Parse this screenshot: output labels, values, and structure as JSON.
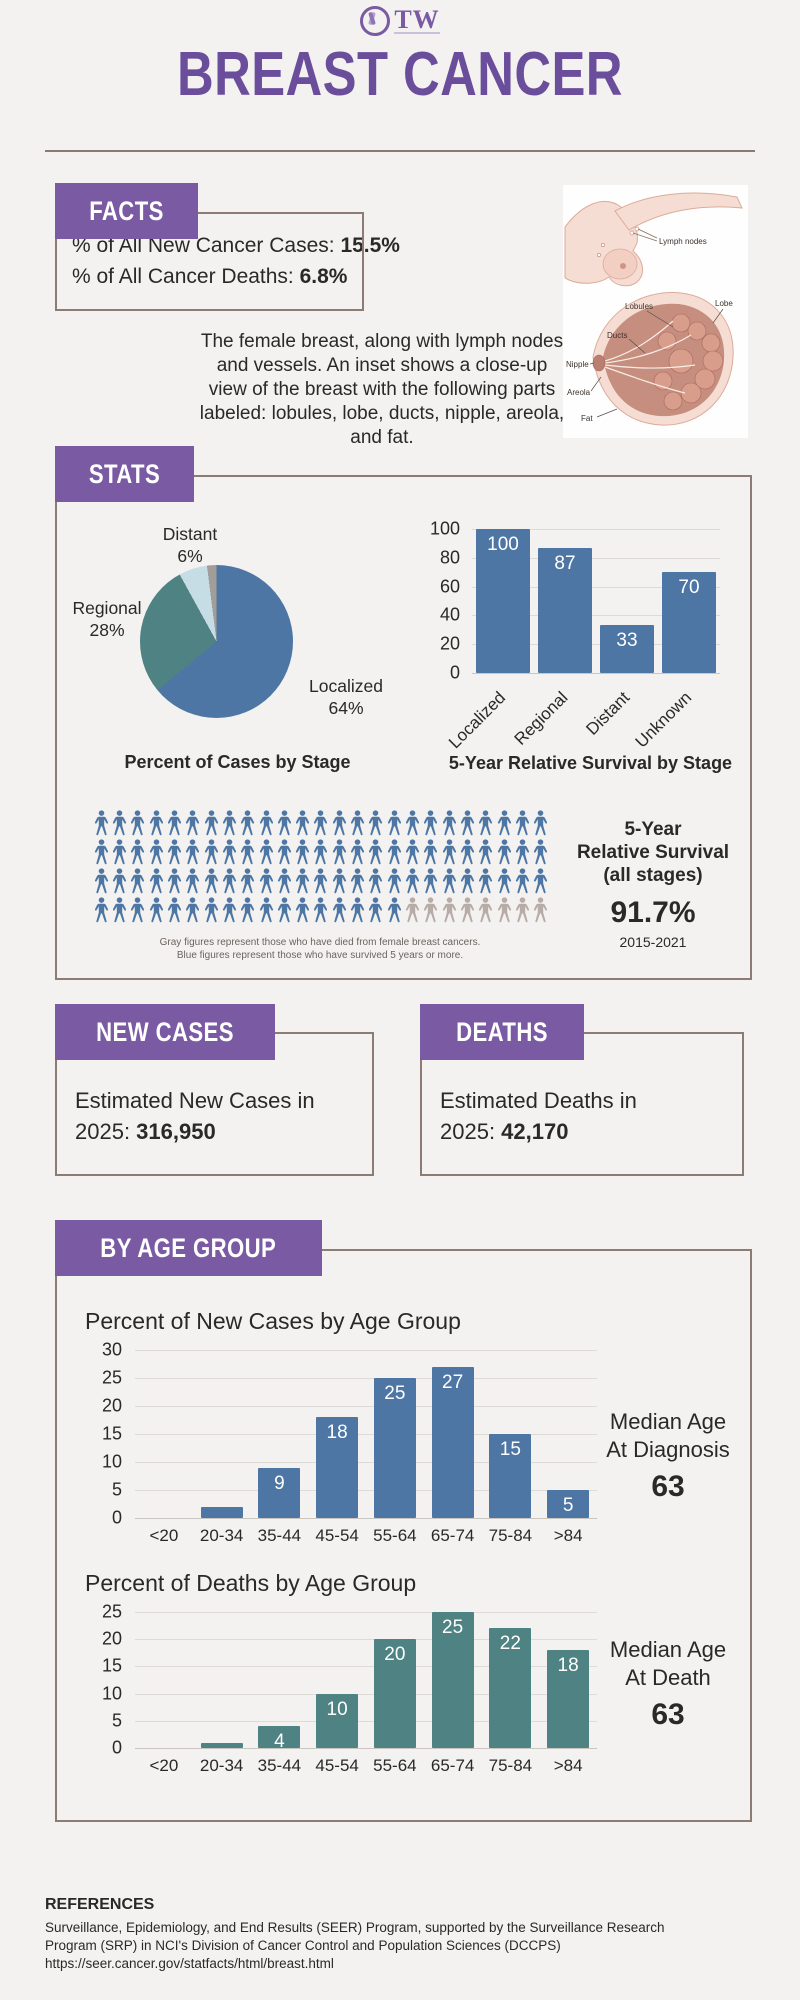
{
  "logo": {
    "text": "TW"
  },
  "title": "BREAST CANCER",
  "colors": {
    "accent_purple": "#7a5ba3",
    "title_purple": "#6b4e9b",
    "steel_blue": "#4d76a4",
    "teal": "#4e8283",
    "pale_blue": "#c6dde6",
    "figure_gray": "#b7aca7",
    "border_brown": "#8c7c74",
    "background": "#f3f2f0"
  },
  "facts": {
    "heading": "FACTS",
    "line1_label": "% of All New Cancer Cases: ",
    "line1_value": "15.5%",
    "line2_label": "% of All Cancer Deaths: ",
    "line2_value": "6.8%",
    "description": "The female breast, along with lymph nodes and vessels. An inset shows a close-up view of the breast with the following parts labeled: lobules, lobe, ducts, nipple, areola, and fat.",
    "anatomy_labels": {
      "lymph": "Lymph nodes",
      "lobules": "Lobules",
      "lobe": "Lobe",
      "ducts": "Ducts",
      "nipple": "Nipple",
      "areola": "Areola",
      "fat": "Fat"
    }
  },
  "stats": {
    "heading": "STATS",
    "pictograph_note_line1": "Gray figures represent those who have died from female breast cancers.",
    "pictograph_note_line2": "Blue figures represent those who have survived 5 years or more.",
    "survival_block": {
      "line1": "5-Year",
      "line2": "Relative Survival",
      "line3": "(all stages)",
      "value": "91.7%",
      "period": "2015-2021"
    }
  },
  "new_cases": {
    "heading": "NEW CASES",
    "line1": "Estimated New Cases in",
    "line2_label": "2025: ",
    "line2_value": "316,950"
  },
  "deaths": {
    "heading": "DEATHS",
    "line1": "Estimated Deaths in",
    "line2_label": "2025: ",
    "line2_value": "42,170"
  },
  "by_age": {
    "heading": "BY AGE GROUP",
    "diagnosis_median": {
      "line1": "Median Age",
      "line2": "At Diagnosis",
      "value": "63"
    },
    "death_median": {
      "line1": "Median Age",
      "line2": "At Death",
      "value": "63"
    }
  },
  "references": {
    "heading": "REFERENCES",
    "line1": "Surveillance, Epidemiology, and End Results (SEER) Program, supported by the Surveillance Research",
    "line2": "Program (SRP) in NCI's Division of Cancer Control and Population Sciences (DCCPS)",
    "url": "https://seer.cancer.gov/statfacts/html/breast.html"
  },
  "chart_data": [
    {
      "type": "pie",
      "title": "Percent of Cases by Stage",
      "slices": [
        {
          "label": "Localized",
          "value": 64,
          "pct": "64%"
        },
        {
          "label": "Regional",
          "value": 28,
          "pct": "28%"
        },
        {
          "label": "Distant",
          "value": 6,
          "pct": "6%"
        },
        {
          "label": "Unknown",
          "value": 2,
          "pct": "2%"
        }
      ],
      "colors": [
        "#4d76a4",
        "#4e8283",
        "#c6dde6",
        "#a39d99"
      ],
      "start": "top",
      "direction": "clockwise",
      "legend": "none"
    },
    {
      "type": "bar",
      "title": "5-Year Relative Survival by Stage",
      "categories": [
        "Localized",
        "Regional",
        "Distant",
        "Unknown"
      ],
      "values": [
        100,
        87,
        33,
        70
      ],
      "value_labels": [
        "100",
        "87",
        "33",
        "70"
      ],
      "ylim": [
        0,
        100
      ],
      "yticks": [
        0,
        20,
        40,
        60,
        80,
        100
      ],
      "bar_color": "#4d76a4",
      "xlabel_rotated": true,
      "grid": true
    },
    {
      "type": "pictograph",
      "total": 100,
      "per_row": 25,
      "rows": 4,
      "survived_count": 92,
      "died_count": 8,
      "survived_color": "#4d76a4",
      "died_color": "#b7aca7",
      "value": "91.7%",
      "period": "2015-2021"
    },
    {
      "type": "bar",
      "title": "Percent of New Cases by Age Group",
      "categories": [
        "<20",
        "20-34",
        "35-44",
        "45-54",
        "55-64",
        "65-74",
        "75-84",
        ">84"
      ],
      "values": [
        0,
        2,
        9,
        18,
        25,
        27,
        15,
        5
      ],
      "value_labels": [
        "",
        "",
        "9",
        "18",
        "25",
        "27",
        "15",
        "5"
      ],
      "ylim": [
        0,
        30
      ],
      "yticks": [
        0,
        5,
        10,
        15,
        20,
        25,
        30
      ],
      "bar_color": "#4d76a4",
      "xlabel_rotated": false,
      "grid": true,
      "median_age": 63
    },
    {
      "type": "bar",
      "title": "Percent of Deaths by Age Group",
      "categories": [
        "<20",
        "20-34",
        "35-44",
        "45-54",
        "55-64",
        "65-74",
        "75-84",
        ">84"
      ],
      "values": [
        0,
        1,
        4,
        10,
        20,
        25,
        22,
        18
      ],
      "value_labels": [
        "",
        "",
        "4",
        "10",
        "20",
        "25",
        "22",
        "18"
      ],
      "ylim": [
        0,
        25
      ],
      "yticks": [
        0,
        5,
        10,
        15,
        20,
        25
      ],
      "bar_color": "#4e8283",
      "xlabel_rotated": false,
      "grid": true,
      "median_age": 63
    }
  ]
}
